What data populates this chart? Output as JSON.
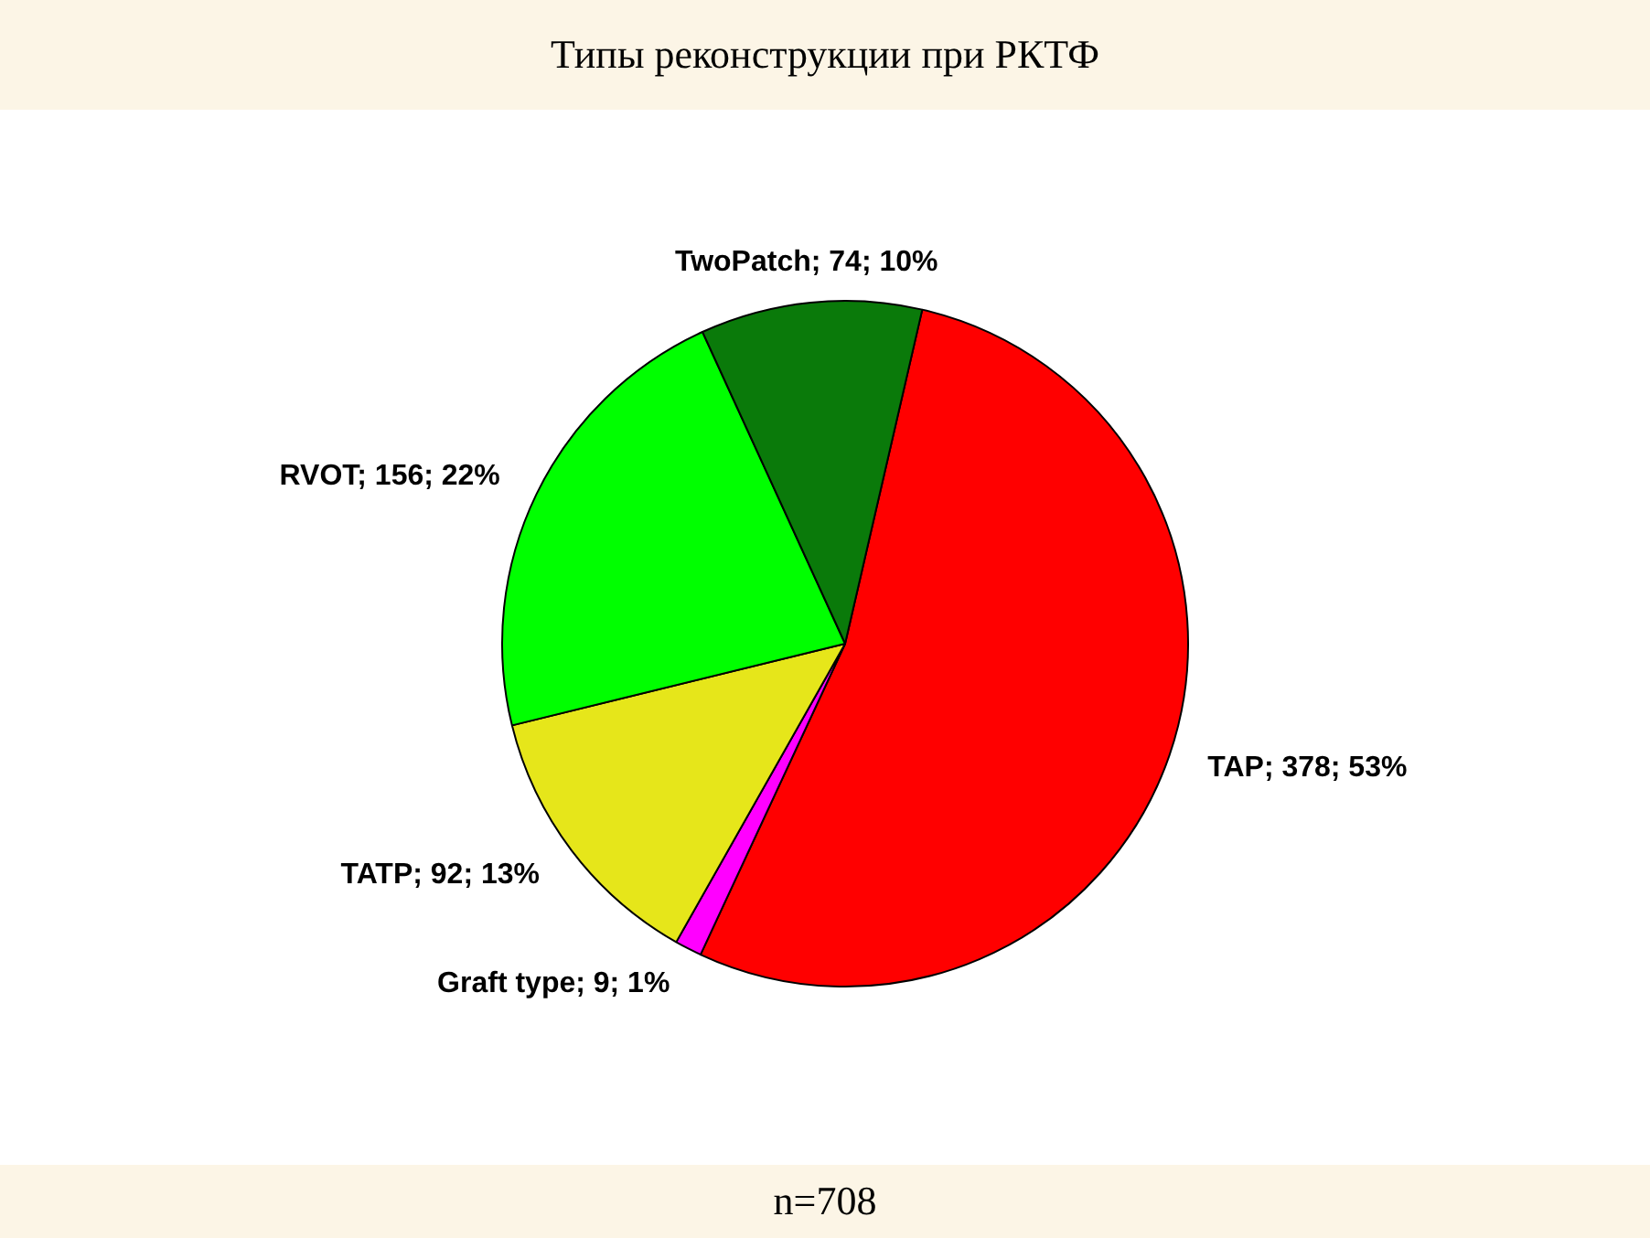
{
  "chart_data": {
    "type": "pie",
    "title": "Типы реконструкции при РКТФ",
    "categories": [
      "TAP",
      "Graft type",
      "TATP",
      "RVOT",
      "TwoPatch"
    ],
    "values": [
      378,
      9,
      92,
      156,
      74
    ],
    "value_labels": [
      "378; 53%",
      "9; 1%",
      "92; 13%",
      "156; 22%",
      "74; 10%"
    ],
    "colors": [
      "#ff0000",
      "#ff00ff",
      "#e6e61a",
      "#00ff00",
      "#0a7a0a"
    ],
    "legend": false,
    "annotations": [
      "n=708"
    ]
  }
}
